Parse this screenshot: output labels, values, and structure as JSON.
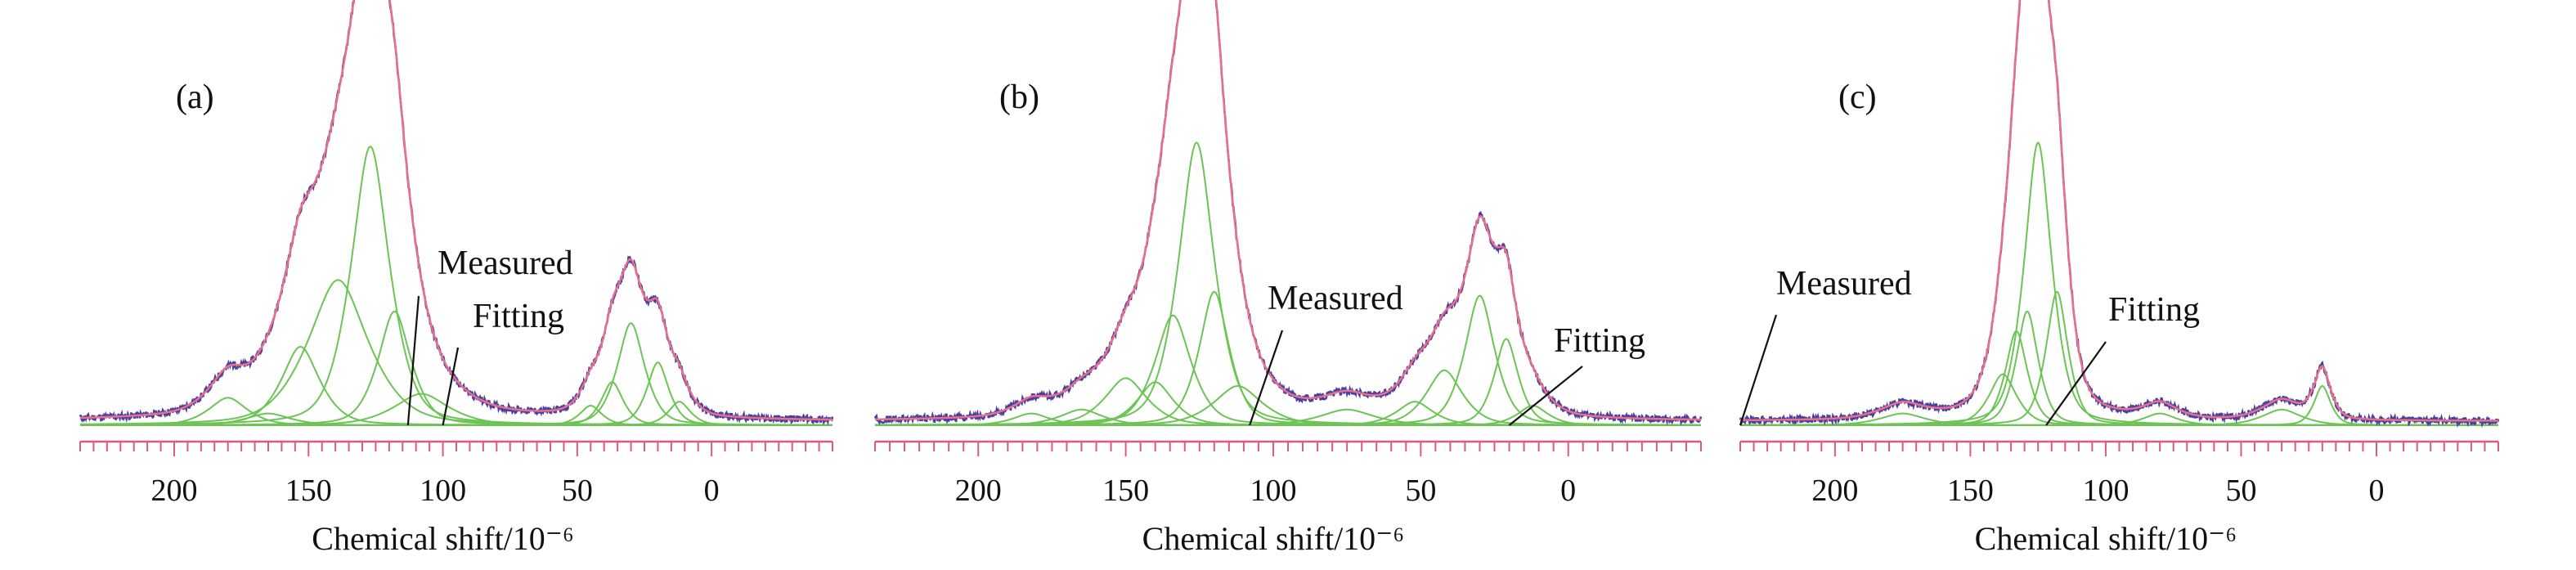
{
  "colors": {
    "measured": "#4b3fa0",
    "fitted_envelope": "#e8708a",
    "components": "#6cc454",
    "axis": "#e05a78",
    "text": "#111111"
  },
  "chart_data": [
    {
      "type": "line",
      "panel_label": "(a)",
      "xlabel": "Chemical shift/10⁻⁶",
      "xlim": [
        235,
        -45
      ],
      "x_reversed": true,
      "ylim": [
        0,
        1
      ],
      "xticks": [
        200,
        150,
        100,
        50,
        0
      ],
      "annotations": [
        {
          "text": "Measured",
          "points_to_x": 113
        },
        {
          "text": "Fitting",
          "points_to_x": 100
        }
      ],
      "series": [
        {
          "name": "Measured",
          "role": "measured"
        },
        {
          "name": "Fitting",
          "role": "envelope"
        }
      ],
      "components": [
        {
          "center": 180,
          "height": 0.07,
          "width": 7
        },
        {
          "center": 165,
          "height": 0.03,
          "width": 8
        },
        {
          "center": 153,
          "height": 0.2,
          "width": 7
        },
        {
          "center": 139,
          "height": 0.37,
          "width": 11
        },
        {
          "center": 127,
          "height": 0.71,
          "width": 7
        },
        {
          "center": 118,
          "height": 0.29,
          "width": 6
        },
        {
          "center": 108,
          "height": 0.08,
          "width": 10
        },
        {
          "center": 45,
          "height": 0.05,
          "width": 4
        },
        {
          "center": 37,
          "height": 0.11,
          "width": 4
        },
        {
          "center": 30,
          "height": 0.26,
          "width": 5
        },
        {
          "center": 20,
          "height": 0.16,
          "width": 4
        },
        {
          "center": 12,
          "height": 0.06,
          "width": 4
        }
      ]
    },
    {
      "type": "line",
      "panel_label": "(b)",
      "xlabel": "Chemical shift/10⁻⁶",
      "xlim": [
        235,
        -45
      ],
      "x_reversed": true,
      "ylim": [
        0,
        1
      ],
      "xticks": [
        200,
        150,
        100,
        50,
        0
      ],
      "annotations": [
        {
          "text": "Measured",
          "points_to_x": 108
        },
        {
          "text": "Fitting",
          "points_to_x": 20
        }
      ],
      "series": [
        {
          "name": "Measured",
          "role": "measured"
        },
        {
          "name": "Fitting",
          "role": "envelope"
        }
      ],
      "components": [
        {
          "center": 182,
          "height": 0.03,
          "width": 6
        },
        {
          "center": 165,
          "height": 0.04,
          "width": 7
        },
        {
          "center": 150,
          "height": 0.12,
          "width": 7
        },
        {
          "center": 140,
          "height": 0.11,
          "width": 6
        },
        {
          "center": 134,
          "height": 0.28,
          "width": 6
        },
        {
          "center": 126,
          "height": 0.72,
          "width": 6
        },
        {
          "center": 120,
          "height": 0.34,
          "width": 5
        },
        {
          "center": 112,
          "height": 0.1,
          "width": 8
        },
        {
          "center": 75,
          "height": 0.04,
          "width": 9
        },
        {
          "center": 52,
          "height": 0.06,
          "width": 6
        },
        {
          "center": 42,
          "height": 0.14,
          "width": 6
        },
        {
          "center": 30,
          "height": 0.33,
          "width": 5
        },
        {
          "center": 21,
          "height": 0.22,
          "width": 4
        },
        {
          "center": 12,
          "height": 0.05,
          "width": 5
        }
      ]
    },
    {
      "type": "line",
      "panel_label": "(c)",
      "xlabel": "Chemical shift/10⁻⁶",
      "xlim": [
        235,
        -45
      ],
      "x_reversed": true,
      "ylim": [
        0,
        1
      ],
      "xticks": [
        200,
        150,
        100,
        50,
        0
      ],
      "annotations": [
        {
          "text": "Measured",
          "points_to_x": 235
        },
        {
          "text": "Fitting",
          "points_to_x": 122
        }
      ],
      "series": [
        {
          "name": "Measured",
          "role": "measured"
        },
        {
          "name": "Fitting",
          "role": "envelope"
        }
      ],
      "components": [
        {
          "center": 175,
          "height": 0.03,
          "width": 8
        },
        {
          "center": 138,
          "height": 0.13,
          "width": 5
        },
        {
          "center": 133,
          "height": 0.24,
          "width": 4
        },
        {
          "center": 129,
          "height": 0.29,
          "width": 4
        },
        {
          "center": 125,
          "height": 0.72,
          "width": 5
        },
        {
          "center": 118,
          "height": 0.34,
          "width": 4
        },
        {
          "center": 80,
          "height": 0.03,
          "width": 6
        },
        {
          "center": 35,
          "height": 0.04,
          "width": 7
        },
        {
          "center": 20,
          "height": 0.1,
          "width": 3
        }
      ]
    }
  ]
}
